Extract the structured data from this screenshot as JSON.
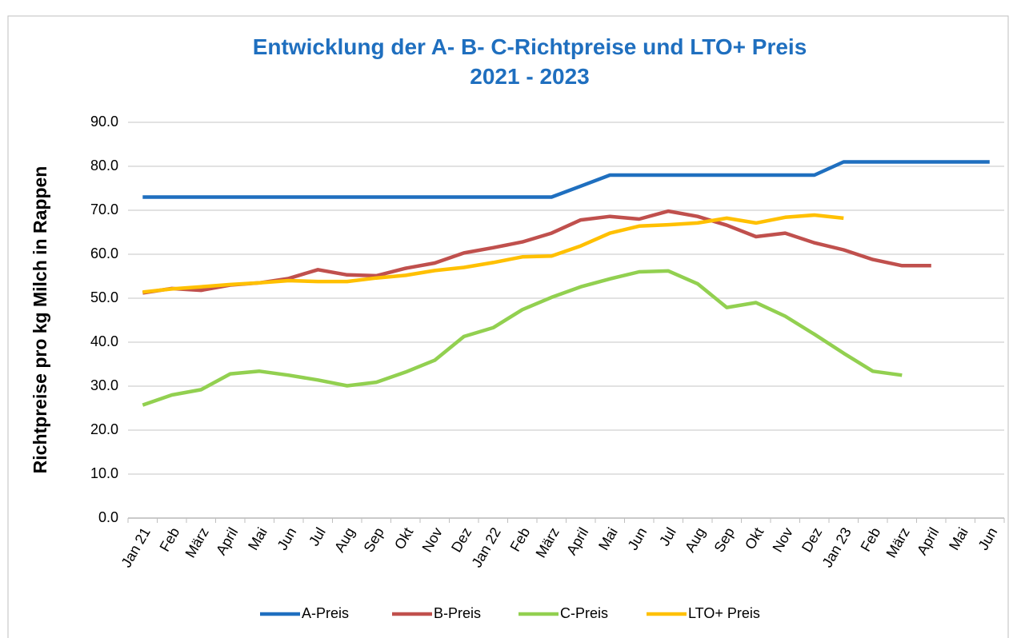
{
  "chart_data": {
    "type": "line",
    "title": "Entwicklung der A- B- C-Richtpreise und LTO+ Preis",
    "subtitle": "2021 - 2023",
    "y_label": "Richtpreise pro kg Milch in Rappen",
    "categories": [
      "Jan 21",
      "Feb",
      "März",
      "April",
      "Mai",
      "Jun",
      "Jul",
      "Aug",
      "Sep",
      "Okt",
      "Nov",
      "Dez",
      "Jan 22",
      "Feb",
      "März",
      "April",
      "Mai",
      "Jun",
      "Jul",
      "Aug",
      "Sep",
      "Okt",
      "Nov",
      "Dez",
      "Jan 23",
      "Feb",
      "März",
      "April",
      "Mai",
      "Jun"
    ],
    "series": [
      {
        "name": "A-Preis",
        "color": "#1f6fbf",
        "values": [
          73,
          73,
          73,
          73,
          73,
          73,
          73,
          73,
          73,
          73,
          73,
          73,
          73,
          73,
          73,
          75.5,
          78,
          78,
          78,
          78,
          78,
          78,
          78,
          78,
          81,
          81,
          81,
          81,
          81,
          81
        ]
      },
      {
        "name": "B-Preis",
        "color": "#c0504d",
        "values": [
          51.2,
          52.2,
          51.8,
          53,
          53.5,
          54.5,
          56.5,
          55.3,
          55.1,
          56.8,
          58,
          60.3,
          61.5,
          62.8,
          64.8,
          67.8,
          68.6,
          68,
          69.8,
          68.6,
          66.6,
          64,
          64.8,
          62.6,
          61,
          58.8,
          57.4,
          57.4,
          null,
          null
        ]
      },
      {
        "name": "C-Preis",
        "color": "#92d050",
        "values": [
          25.7,
          28,
          29.2,
          32.8,
          33.4,
          32.5,
          31.4,
          30.1,
          30.9,
          33.2,
          35.9,
          41.3,
          43.3,
          47.4,
          50.2,
          52.6,
          54.4,
          56,
          56.2,
          53.3,
          47.9,
          49,
          45.9,
          41.8,
          37.5,
          33.4,
          32.5,
          null,
          null,
          null
        ]
      },
      {
        "name": "LTO+ Preis",
        "color": "#ffc000",
        "values": [
          51.4,
          52.1,
          52.6,
          53.1,
          53.5,
          54,
          53.8,
          53.8,
          54.6,
          55.2,
          56.3,
          57,
          58.1,
          59.4,
          59.6,
          61.9,
          64.8,
          66.4,
          66.7,
          67.1,
          68.2,
          67.1,
          68.4,
          68.9,
          68.2,
          null,
          null,
          null,
          null,
          null
        ]
      }
    ],
    "ylim": [
      0,
      90
    ],
    "yticks": [
      {
        "value": 0,
        "label": "0.0"
      },
      {
        "value": 10,
        "label": "10.0"
      },
      {
        "value": 20,
        "label": "20.0"
      },
      {
        "value": 30,
        "label": "30.0"
      },
      {
        "value": 40,
        "label": "40.0"
      },
      {
        "value": 50,
        "label": "50.0"
      },
      {
        "value": 60,
        "label": "60.0"
      },
      {
        "value": 70,
        "label": "70.0"
      },
      {
        "value": 80,
        "label": "80.0"
      },
      {
        "value": 90,
        "label": "90.0"
      }
    ],
    "grid": true,
    "legend": "bottom"
  }
}
